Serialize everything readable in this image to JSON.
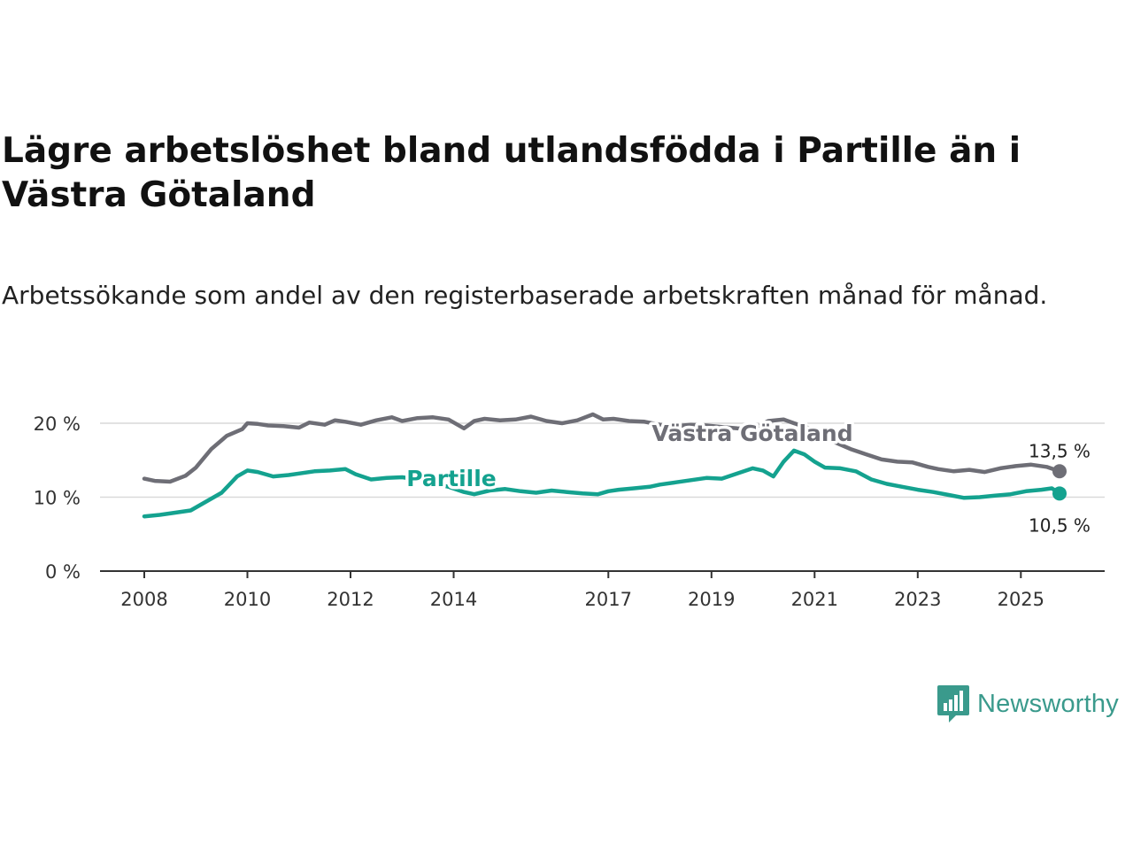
{
  "header": {
    "title": "Lägre arbetslöshet bland utlandsfödda i Partille än i Västra Götaland",
    "subtitle": "Arbetssökande som andel av den registerbaserade arbetskraften månad för månad."
  },
  "brand": {
    "name": "Newsworthy",
    "color": "#3a9a8c"
  },
  "chart_data": {
    "type": "line",
    "title": "Lägre arbetslöshet bland utlandsfödda i Partille än i Västra Götaland",
    "subtitle": "Arbetssökande som andel av den registerbaserade arbetskraften månad för månad.",
    "xlabel": "",
    "ylabel": "",
    "xlim": [
      2008,
      2025.75
    ],
    "ylim": [
      0,
      20
    ],
    "grid": true,
    "y_ticks": [
      {
        "value": 0,
        "label": "0 %"
      },
      {
        "value": 10,
        "label": "10 %"
      },
      {
        "value": 20,
        "label": "20 %"
      }
    ],
    "x_ticks": [
      {
        "value": 2008,
        "label": "2008"
      },
      {
        "value": 2010,
        "label": "2010"
      },
      {
        "value": 2012,
        "label": "2012"
      },
      {
        "value": 2014,
        "label": "2014"
      },
      {
        "value": 2017,
        "label": "2017"
      },
      {
        "value": 2019,
        "label": "2019"
      },
      {
        "value": 2021,
        "label": "2021"
      },
      {
        "value": 2023,
        "label": "2023"
      },
      {
        "value": 2025,
        "label": "2025"
      }
    ],
    "series": [
      {
        "name": "Västra Götaland",
        "color": "#6e6e76",
        "end_label": "13,5 %",
        "x": [
          2008.0,
          2008.2,
          2008.5,
          2008.8,
          2009.0,
          2009.3,
          2009.6,
          2009.9,
          2010.0,
          2010.2,
          2010.4,
          2010.7,
          2011.0,
          2011.2,
          2011.5,
          2011.7,
          2011.9,
          2012.2,
          2012.5,
          2012.8,
          2013.0,
          2013.3,
          2013.6,
          2013.9,
          2014.2,
          2014.4,
          2014.6,
          2014.9,
          2015.2,
          2015.5,
          2015.8,
          2016.1,
          2016.4,
          2016.7,
          2016.9,
          2017.1,
          2017.4,
          2017.7,
          2018.0,
          2018.3,
          2018.6,
          2018.9,
          2019.2,
          2019.5,
          2019.8,
          2020.1,
          2020.4,
          2020.6,
          2020.9,
          2021.1,
          2021.4,
          2021.7,
          2022.0,
          2022.3,
          2022.6,
          2022.9,
          2023.2,
          2023.4,
          2023.7,
          2024.0,
          2024.3,
          2024.6,
          2024.9,
          2025.2,
          2025.5,
          2025.75
        ],
        "values": [
          12.5,
          12.2,
          12.1,
          12.9,
          14.0,
          16.5,
          18.3,
          19.2,
          20.0,
          19.9,
          19.7,
          19.6,
          19.4,
          20.1,
          19.8,
          20.4,
          20.2,
          19.8,
          20.4,
          20.8,
          20.3,
          20.7,
          20.8,
          20.5,
          19.3,
          20.3,
          20.6,
          20.4,
          20.5,
          20.9,
          20.3,
          20.0,
          20.4,
          21.2,
          20.5,
          20.6,
          20.3,
          20.2,
          19.8,
          19.6,
          19.8,
          19.7,
          19.5,
          19.3,
          19.2,
          20.3,
          20.5,
          20.0,
          19.3,
          18.4,
          17.4,
          16.5,
          15.8,
          15.1,
          14.8,
          14.7,
          14.1,
          13.8,
          13.5,
          13.7,
          13.4,
          13.9,
          14.2,
          14.4,
          14.1,
          13.5
        ]
      },
      {
        "name": "Partille",
        "color": "#14a28f",
        "end_label": "10,5 %",
        "x": [
          2008.0,
          2008.3,
          2008.6,
          2008.9,
          2009.2,
          2009.5,
          2009.8,
          2010.0,
          2010.2,
          2010.5,
          2010.8,
          2011.0,
          2011.3,
          2011.6,
          2011.9,
          2012.1,
          2012.4,
          2012.7,
          2013.0,
          2013.3,
          2013.6,
          2013.9,
          2014.2,
          2014.4,
          2014.7,
          2015.0,
          2015.3,
          2015.6,
          2015.9,
          2016.2,
          2016.5,
          2016.8,
          2017.0,
          2017.2,
          2017.5,
          2017.8,
          2018.0,
          2018.3,
          2018.6,
          2018.9,
          2019.2,
          2019.5,
          2019.8,
          2020.0,
          2020.2,
          2020.4,
          2020.6,
          2020.8,
          2021.0,
          2021.2,
          2021.5,
          2021.8,
          2022.1,
          2022.4,
          2022.7,
          2023.0,
          2023.3,
          2023.6,
          2023.9,
          2024.2,
          2024.5,
          2024.8,
          2025.1,
          2025.4,
          2025.6,
          2025.75
        ],
        "values": [
          7.4,
          7.6,
          7.9,
          8.2,
          9.4,
          10.6,
          12.8,
          13.6,
          13.4,
          12.8,
          13.0,
          13.2,
          13.5,
          13.6,
          13.8,
          13.1,
          12.4,
          12.6,
          12.7,
          12.4,
          11.9,
          11.4,
          10.7,
          10.4,
          10.9,
          11.1,
          10.8,
          10.6,
          10.9,
          10.7,
          10.5,
          10.4,
          10.8,
          11.0,
          11.2,
          11.4,
          11.7,
          12.0,
          12.3,
          12.6,
          12.5,
          13.2,
          13.9,
          13.6,
          12.8,
          14.8,
          16.3,
          15.8,
          14.8,
          14.0,
          13.9,
          13.5,
          12.4,
          11.8,
          11.4,
          11.0,
          10.7,
          10.3,
          9.9,
          10.0,
          10.2,
          10.4,
          10.8,
          11.0,
          11.2,
          10.5
        ]
      }
    ]
  }
}
